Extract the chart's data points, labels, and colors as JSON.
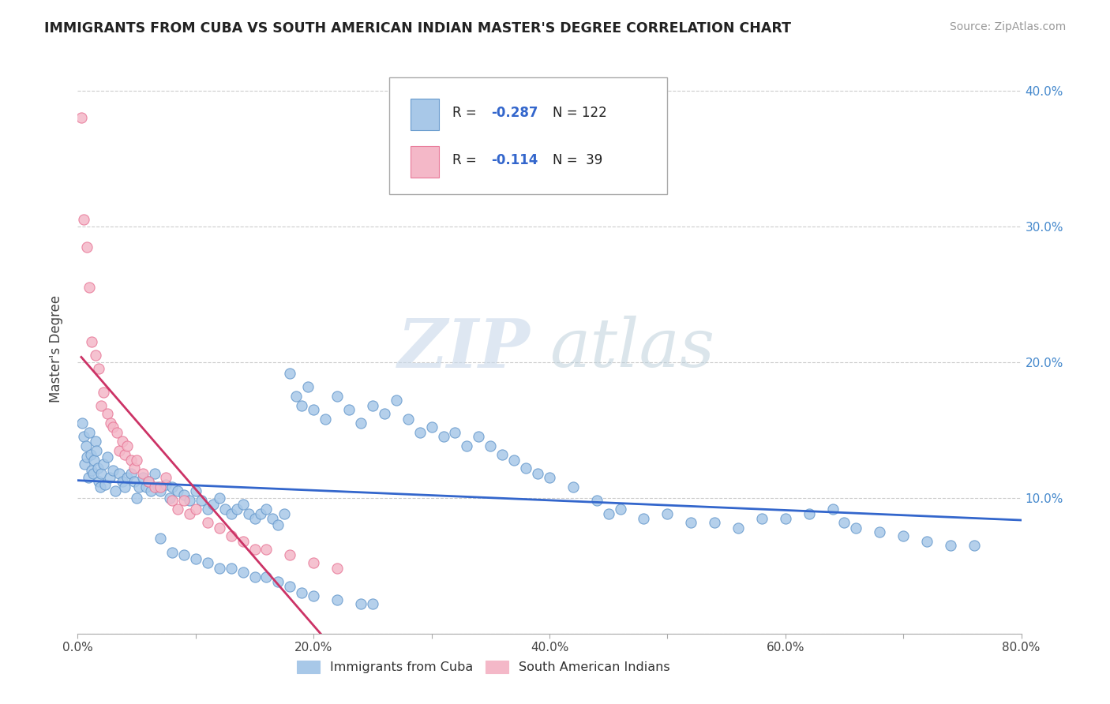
{
  "title": "IMMIGRANTS FROM CUBA VS SOUTH AMERICAN INDIAN MASTER'S DEGREE CORRELATION CHART",
  "source": "Source: ZipAtlas.com",
  "ylabel": "Master's Degree",
  "xlim": [
    0.0,
    0.8
  ],
  "ylim": [
    0.0,
    0.42
  ],
  "blue_color": "#a8c8e8",
  "pink_color": "#f4b8c8",
  "blue_edge": "#6699cc",
  "pink_edge": "#e87898",
  "line_blue": "#3366cc",
  "line_pink": "#cc3366",
  "blue_points_x": [
    0.004,
    0.005,
    0.006,
    0.007,
    0.008,
    0.009,
    0.01,
    0.011,
    0.012,
    0.013,
    0.014,
    0.015,
    0.016,
    0.017,
    0.018,
    0.019,
    0.02,
    0.022,
    0.023,
    0.025,
    0.027,
    0.03,
    0.032,
    0.035,
    0.038,
    0.04,
    0.042,
    0.045,
    0.048,
    0.05,
    0.052,
    0.055,
    0.058,
    0.06,
    0.062,
    0.065,
    0.068,
    0.07,
    0.075,
    0.078,
    0.08,
    0.085,
    0.09,
    0.095,
    0.1,
    0.105,
    0.11,
    0.115,
    0.12,
    0.125,
    0.13,
    0.135,
    0.14,
    0.145,
    0.15,
    0.155,
    0.16,
    0.165,
    0.17,
    0.175,
    0.18,
    0.185,
    0.19,
    0.195,
    0.2,
    0.21,
    0.22,
    0.23,
    0.24,
    0.25,
    0.26,
    0.27,
    0.28,
    0.29,
    0.3,
    0.31,
    0.32,
    0.33,
    0.34,
    0.35,
    0.36,
    0.37,
    0.38,
    0.39,
    0.4,
    0.42,
    0.44,
    0.45,
    0.46,
    0.48,
    0.5,
    0.52,
    0.54,
    0.56,
    0.58,
    0.6,
    0.62,
    0.64,
    0.65,
    0.66,
    0.68,
    0.7,
    0.72,
    0.74,
    0.76,
    0.07,
    0.08,
    0.09,
    0.1,
    0.11,
    0.12,
    0.13,
    0.14,
    0.15,
    0.16,
    0.17,
    0.18,
    0.19,
    0.2,
    0.22,
    0.24,
    0.25
  ],
  "blue_points_y": [
    0.155,
    0.145,
    0.125,
    0.138,
    0.13,
    0.115,
    0.148,
    0.132,
    0.12,
    0.118,
    0.128,
    0.142,
    0.135,
    0.122,
    0.112,
    0.108,
    0.118,
    0.125,
    0.11,
    0.13,
    0.115,
    0.12,
    0.105,
    0.118,
    0.112,
    0.108,
    0.115,
    0.118,
    0.112,
    0.1,
    0.108,
    0.115,
    0.108,
    0.112,
    0.105,
    0.118,
    0.108,
    0.105,
    0.11,
    0.1,
    0.108,
    0.105,
    0.102,
    0.098,
    0.105,
    0.098,
    0.092,
    0.095,
    0.1,
    0.092,
    0.088,
    0.092,
    0.095,
    0.088,
    0.085,
    0.088,
    0.092,
    0.085,
    0.08,
    0.088,
    0.192,
    0.175,
    0.168,
    0.182,
    0.165,
    0.158,
    0.175,
    0.165,
    0.155,
    0.168,
    0.162,
    0.172,
    0.158,
    0.148,
    0.152,
    0.145,
    0.148,
    0.138,
    0.145,
    0.138,
    0.132,
    0.128,
    0.122,
    0.118,
    0.115,
    0.108,
    0.098,
    0.088,
    0.092,
    0.085,
    0.088,
    0.082,
    0.082,
    0.078,
    0.085,
    0.085,
    0.088,
    0.092,
    0.082,
    0.078,
    0.075,
    0.072,
    0.068,
    0.065,
    0.065,
    0.07,
    0.06,
    0.058,
    0.055,
    0.052,
    0.048,
    0.048,
    0.045,
    0.042,
    0.042,
    0.038,
    0.035,
    0.03,
    0.028,
    0.025,
    0.022,
    0.022
  ],
  "pink_points_x": [
    0.003,
    0.005,
    0.008,
    0.01,
    0.012,
    0.015,
    0.018,
    0.02,
    0.022,
    0.025,
    0.028,
    0.03,
    0.033,
    0.035,
    0.038,
    0.04,
    0.042,
    0.045,
    0.048,
    0.05,
    0.055,
    0.06,
    0.065,
    0.07,
    0.075,
    0.08,
    0.085,
    0.09,
    0.095,
    0.1,
    0.11,
    0.12,
    0.13,
    0.14,
    0.15,
    0.16,
    0.18,
    0.2,
    0.22
  ],
  "pink_points_y": [
    0.38,
    0.305,
    0.285,
    0.255,
    0.215,
    0.205,
    0.195,
    0.168,
    0.178,
    0.162,
    0.155,
    0.152,
    0.148,
    0.135,
    0.142,
    0.132,
    0.138,
    0.128,
    0.122,
    0.128,
    0.118,
    0.112,
    0.108,
    0.108,
    0.115,
    0.098,
    0.092,
    0.098,
    0.088,
    0.092,
    0.082,
    0.078,
    0.072,
    0.068,
    0.062,
    0.062,
    0.058,
    0.052,
    0.048
  ]
}
